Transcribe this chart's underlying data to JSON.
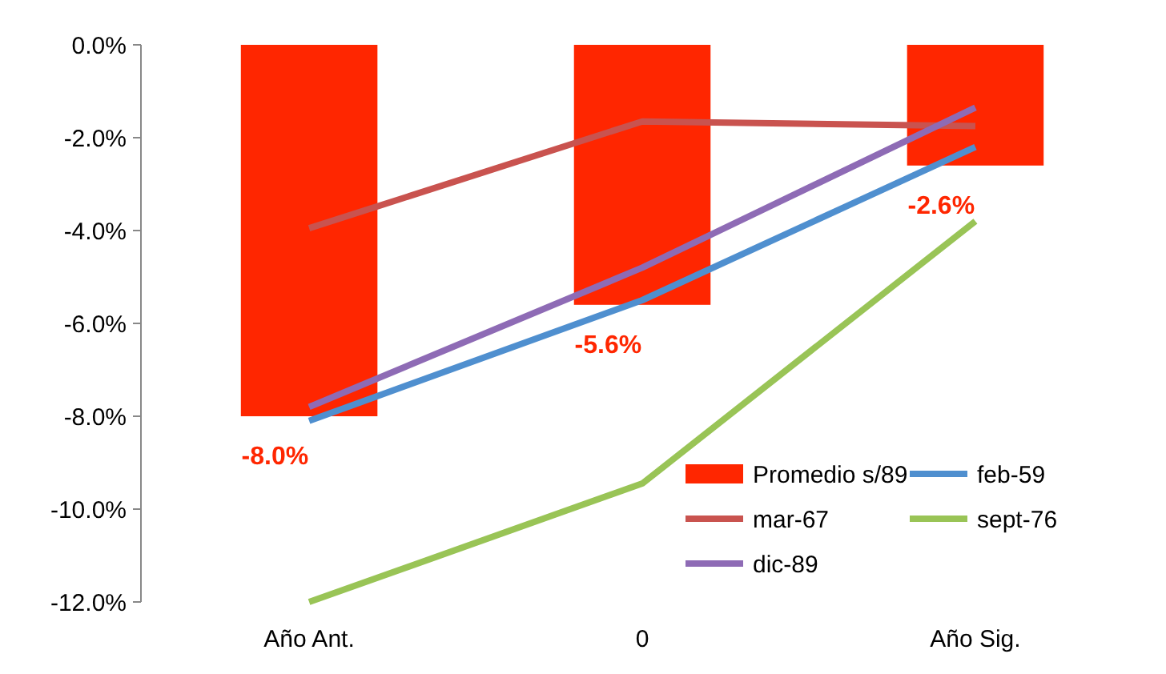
{
  "chart_data": {
    "type": "bar",
    "categories": [
      "Año Ant.",
      "0",
      "Año Sig."
    ],
    "series": [
      {
        "name": "Promedio s/89",
        "color": "#ff2600",
        "values": [
          -8.0,
          -5.6,
          -2.6
        ],
        "value_labels": [
          "-8.0%",
          "-5.6%",
          "-2.6%"
        ]
      },
      {
        "name": "feb-59",
        "type": "line",
        "color": "#4f8fcf",
        "values": [
          -8.1,
          -5.5,
          -2.2
        ]
      },
      {
        "name": "mar-67",
        "type": "line",
        "color": "#c9534f",
        "values": [
          -3.95,
          -1.65,
          -1.75
        ]
      },
      {
        "name": "sept-76",
        "type": "line",
        "color": "#99c456",
        "values": [
          -12.0,
          -9.45,
          -3.8
        ]
      },
      {
        "name": "dic-89",
        "type": "line",
        "color": "#8e6bb5",
        "values": [
          -7.8,
          -4.8,
          -1.35
        ]
      }
    ],
    "ylim": [
      -12,
      0
    ],
    "yticks": [
      {
        "value": 0,
        "label": "0.0%"
      },
      {
        "value": -2,
        "label": "-2.0%"
      },
      {
        "value": -4,
        "label": "-4.0%"
      },
      {
        "value": -6,
        "label": "-6.0%"
      },
      {
        "value": -8,
        "label": "-8.0%"
      },
      {
        "value": -10,
        "label": "-10.0%"
      },
      {
        "value": -12,
        "label": "-12.0%"
      }
    ],
    "legend": "bottom right",
    "grid": false,
    "marker": "none",
    "line_style": "solid"
  }
}
